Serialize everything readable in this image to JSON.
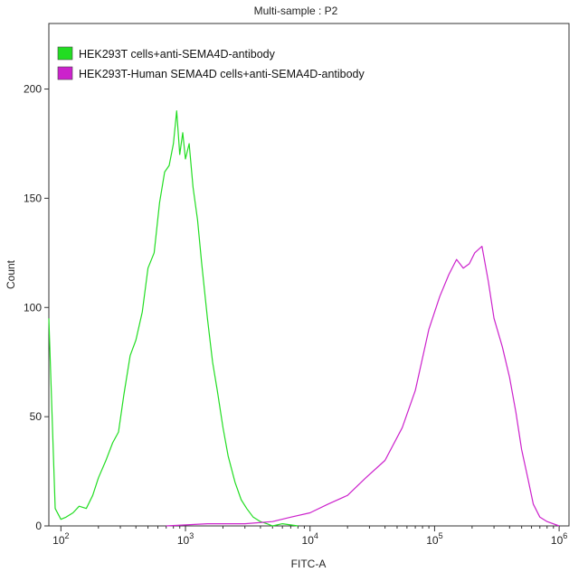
{
  "chart_data": {
    "type": "line",
    "title": "Multi-sample : P2",
    "xlabel": "FITC-A",
    "ylabel": "Count",
    "x_scale": "log",
    "xlim": [
      80,
      1200000
    ],
    "ylim": [
      0,
      230
    ],
    "x_ticks": [
      {
        "value": 100,
        "base": "10",
        "exp": "2"
      },
      {
        "value": 1000,
        "base": "10",
        "exp": "3"
      },
      {
        "value": 10000,
        "base": "10",
        "exp": "4"
      },
      {
        "value": 100000,
        "base": "10",
        "exp": "5"
      },
      {
        "value": 1000000,
        "base": "10",
        "exp": "6"
      }
    ],
    "y_ticks": [
      0,
      50,
      100,
      150,
      200
    ],
    "grid": false,
    "legend_position": "top-left",
    "series": [
      {
        "name": "HEK293T cells+anti-SEMA4D-antibody",
        "color": "#22dd22",
        "x": [
          80,
          90,
          100,
          110,
          125,
          140,
          160,
          180,
          200,
          230,
          260,
          290,
          320,
          360,
          400,
          450,
          500,
          560,
          620,
          680,
          740,
          800,
          850,
          900,
          950,
          1000,
          1070,
          1150,
          1250,
          1350,
          1500,
          1650,
          1800,
          2000,
          2200,
          2500,
          2800,
          3100,
          3500,
          4000,
          4500,
          5000,
          6000,
          8000
        ],
        "y": [
          95,
          8,
          3,
          4,
          6,
          9,
          8,
          14,
          22,
          30,
          38,
          43,
          60,
          78,
          85,
          98,
          118,
          125,
          148,
          162,
          165,
          175,
          190,
          170,
          180,
          168,
          175,
          155,
          140,
          120,
          95,
          75,
          62,
          45,
          32,
          20,
          12,
          8,
          4,
          2,
          1,
          0,
          1,
          0
        ]
      },
      {
        "name": "HEK293T-Human SEMA4D cells+anti-SEMA4D-antibody",
        "color": "#cc22cc",
        "x": [
          700,
          1500,
          3000,
          5000,
          7000,
          10000,
          14000,
          20000,
          28000,
          40000,
          55000,
          70000,
          90000,
          110000,
          130000,
          150000,
          170000,
          190000,
          210000,
          240000,
          270000,
          300000,
          350000,
          400000,
          450000,
          500000,
          560000,
          620000,
          700000,
          800000,
          1000000
        ],
        "y": [
          0,
          1,
          1,
          2,
          4,
          6,
          10,
          14,
          22,
          30,
          45,
          62,
          90,
          105,
          115,
          122,
          118,
          120,
          125,
          128,
          112,
          95,
          82,
          68,
          52,
          35,
          22,
          10,
          4,
          2,
          0
        ]
      }
    ]
  }
}
